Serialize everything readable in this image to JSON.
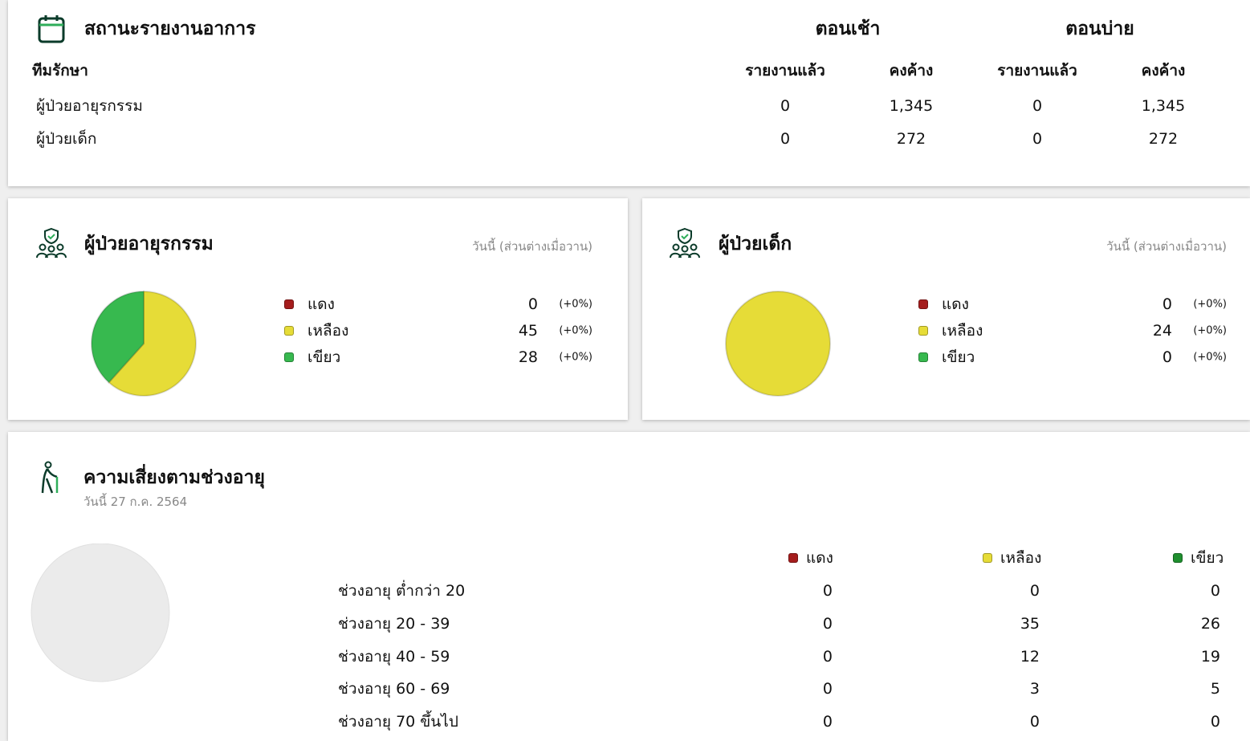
{
  "status": {
    "title": "สถานะรายงานอาการ",
    "team_header": "ทีมรักษา",
    "morning": "ตอนเช้า",
    "afternoon": "ตอนบ่าย",
    "columns": [
      "รายงานแล้ว",
      "คงค้าง",
      "รายงานแล้ว",
      "คงค้าง"
    ],
    "rows": [
      {
        "team": "ผู้ป่วยอายุรกรรม",
        "values": [
          0,
          "1,345",
          0,
          "1,345"
        ]
      },
      {
        "team": "ผู้ป่วยเด็ก",
        "values": [
          0,
          272,
          0,
          272
        ]
      }
    ]
  },
  "panels": [
    {
      "title": "ผู้ป่วยอายุรกรรม",
      "subtitle": "วันนี้ (ส่วนต่างเมื่อวาน)",
      "items": [
        {
          "label": "แดง",
          "color": "#a51d1d",
          "value": 0,
          "change": "(+0%)"
        },
        {
          "label": "เหลือง",
          "color": "#e6dc37",
          "value": 45,
          "change": "(+0%)"
        },
        {
          "label": "เขียว",
          "color": "#37b94f",
          "value": 28,
          "change": "(+0%)"
        }
      ]
    },
    {
      "title": "ผู้ป่วยเด็ก",
      "subtitle": "วันนี้ (ส่วนต่างเมื่อวาน)",
      "items": [
        {
          "label": "แดง",
          "color": "#a51d1d",
          "value": 0,
          "change": "(+0%)"
        },
        {
          "label": "เหลือง",
          "color": "#e6dc37",
          "value": 24,
          "change": "(+0%)"
        },
        {
          "label": "เขียว",
          "color": "#37b94f",
          "value": 0,
          "change": "(+0%)"
        }
      ]
    }
  ],
  "age_risk": {
    "title": "ความเสี่ยงตามช่วงอายุ",
    "date": "วันนี้ 27 ก.ค. 2564",
    "legend": [
      {
        "name": "แดง",
        "color": "#a51d1d"
      },
      {
        "name": "เหลือง",
        "color": "#e6dc37"
      },
      {
        "name": "เขียว",
        "color": "#1f8f2f"
      }
    ],
    "rows": [
      {
        "label": "ช่วงอายุ ต่ำกว่า 20",
        "values": [
          0,
          0,
          0
        ]
      },
      {
        "label": "ช่วงอายุ 20 - 39",
        "values": [
          0,
          35,
          26
        ]
      },
      {
        "label": "ช่วงอายุ 40 - 59",
        "values": [
          0,
          12,
          19
        ]
      },
      {
        "label": "ช่วงอายุ 60 - 69",
        "values": [
          0,
          3,
          5
        ]
      },
      {
        "label": "ช่วงอายุ 70 ขึ้นไป",
        "values": [
          0,
          0,
          0
        ]
      }
    ]
  }
}
